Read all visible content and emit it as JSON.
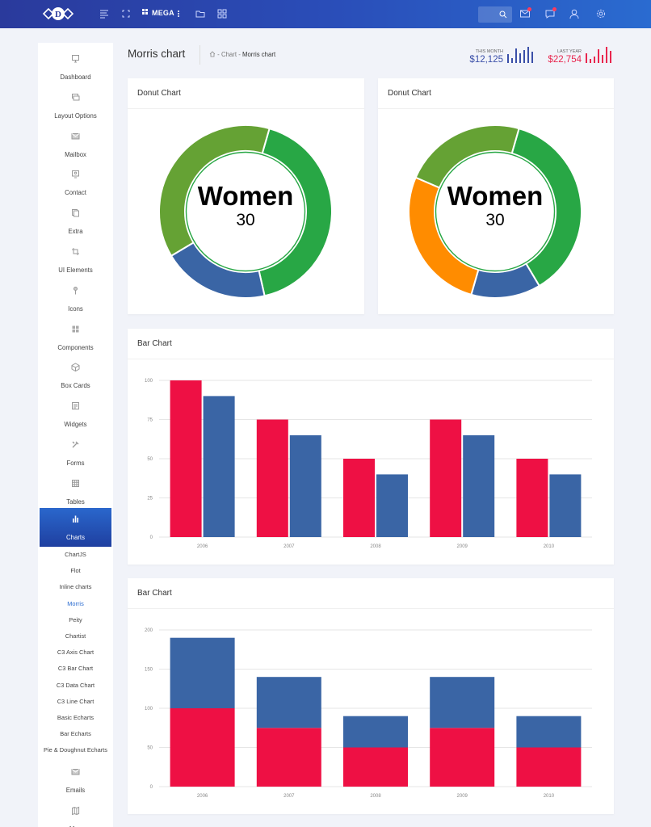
{
  "topbar": {
    "mega_label": "MEGA",
    "colors": {
      "gradient_start": "#2a3a9c",
      "gradient_end": "#2a6bd0",
      "notification_dot": "#ff3b5c"
    },
    "icons": [
      "menu-icon",
      "fullscreen-icon",
      "grid-icon",
      "folder-icon",
      "apps-icon",
      "search-icon",
      "mail-icon",
      "chat-icon",
      "user-icon",
      "settings-icon"
    ]
  },
  "sidebar": {
    "items": [
      {
        "label": "Dashboard",
        "icon": "monitor-icon"
      },
      {
        "label": "Layout Options",
        "icon": "layers-icon"
      },
      {
        "label": "Mailbox",
        "icon": "mail-icon"
      },
      {
        "label": "Contact",
        "icon": "contact-icon"
      },
      {
        "label": "Extra",
        "icon": "copy-icon"
      },
      {
        "label": "UI Elements",
        "icon": "crop-icon"
      },
      {
        "label": "Icons",
        "icon": "pin-icon"
      },
      {
        "label": "Components",
        "icon": "grid-icon"
      },
      {
        "label": "Box Cards",
        "icon": "box-icon"
      },
      {
        "label": "Widgets",
        "icon": "widgets-icon"
      },
      {
        "label": "Forms",
        "icon": "tools-icon"
      },
      {
        "label": "Tables",
        "icon": "table-icon"
      },
      {
        "label": "Charts",
        "icon": "bar-chart-icon",
        "active": true
      }
    ],
    "submenu": [
      "ChartJS",
      "Flot",
      "Inline charts",
      "Morris",
      "Peity",
      "Chartist",
      "C3 Axis Chart",
      "C3 Bar Chart",
      "C3 Data Chart",
      "C3 Line Chart",
      "Basic Echarts",
      "Bar Echarts",
      "Pie & Doughnut Echarts"
    ],
    "submenu_current": "Morris",
    "bottom_items": [
      {
        "label": "Emails",
        "icon": "mail-icon"
      },
      {
        "label": "Map",
        "icon": "map-icon"
      }
    ]
  },
  "header": {
    "title": "Morris chart",
    "breadcrumb": [
      "Chart",
      "Morris chart"
    ],
    "stats": [
      {
        "caption": "THIS MONTH",
        "value": "$12,125",
        "color": "#3a4fa8",
        "bars": [
          0.55,
          0.3,
          0.9,
          0.6,
          0.8,
          1.0,
          0.7
        ]
      },
      {
        "caption": "LAST YEAR",
        "value": "$22,754",
        "color": "#e8264e",
        "bars": [
          0.6,
          0.25,
          0.4,
          0.85,
          0.5,
          1.0,
          0.75
        ]
      }
    ]
  },
  "donut_cards": [
    {
      "title": "Donut Chart",
      "center_label": "Women",
      "center_value": "30"
    },
    {
      "title": "Donut Chart",
      "center_label": "Women",
      "center_value": "30"
    }
  ],
  "bar_cards": [
    {
      "title": "Bar Chart"
    },
    {
      "title": "Bar Chart"
    }
  ],
  "chart_data": [
    {
      "type": "pie",
      "subtype": "donut",
      "center_label": "Women",
      "center_value": 30,
      "slices": [
        {
          "fraction": 0.42,
          "color": "#28a745"
        },
        {
          "fraction": 0.2,
          "color": "#3a65a5"
        },
        {
          "fraction": 0.38,
          "color": "#65a234"
        }
      ]
    },
    {
      "type": "pie",
      "subtype": "donut",
      "center_label": "Women",
      "center_value": 30,
      "slices": [
        {
          "fraction": 0.37,
          "color": "#28a745"
        },
        {
          "fraction": 0.13,
          "color": "#3a65a5"
        },
        {
          "fraction": 0.27,
          "color": "#ff8c00"
        },
        {
          "fraction": 0.23,
          "color": "#65a234"
        }
      ]
    },
    {
      "type": "bar",
      "categories": [
        "2006",
        "2007",
        "2008",
        "2009",
        "2010"
      ],
      "series": [
        {
          "values": [
            100,
            75,
            50,
            75,
            50
          ],
          "color": "#ee1044"
        },
        {
          "values": [
            90,
            65,
            40,
            65,
            40
          ],
          "color": "#3a65a5"
        }
      ],
      "yticks": [
        0,
        25,
        50,
        75,
        100
      ],
      "ylim": [
        0,
        100
      ],
      "stacked": false
    },
    {
      "type": "bar",
      "categories": [
        "2006",
        "2007",
        "2008",
        "2009",
        "2010"
      ],
      "series": [
        {
          "values": [
            100,
            75,
            50,
            75,
            50
          ],
          "color": "#ee1044"
        },
        {
          "values": [
            90,
            65,
            40,
            65,
            40
          ],
          "color": "#3a65a5"
        }
      ],
      "yticks": [
        0,
        50,
        100,
        150,
        200
      ],
      "ylim": [
        0,
        200
      ],
      "stacked": true
    }
  ]
}
